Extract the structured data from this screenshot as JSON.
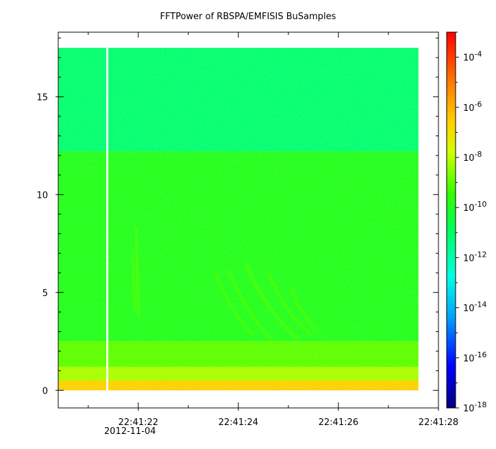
{
  "chart_data": {
    "type": "heatmap",
    "title": "FFTPower of RBSPA/EMFISIS  BuSamples",
    "xlabel": "",
    "ylabel": "",
    "x_ticks": [
      "22:41:22",
      "22:41:24",
      "22:41:26",
      "22:41:28"
    ],
    "x_tick_values": [
      22,
      24,
      26,
      28
    ],
    "x_date_label": "2012-11-04",
    "x_range_seconds": [
      20.4,
      28.0
    ],
    "data_time_range_seconds": [
      20.4,
      27.6
    ],
    "data_gap_seconds": 21.38,
    "y_ticks": [
      "0",
      "5",
      "10",
      "15"
    ],
    "y_tick_values": [
      0,
      5,
      10,
      15
    ],
    "ylim": [
      -0.9,
      18.3
    ],
    "data_freq_range": [
      0,
      17.5
    ],
    "colorbar": {
      "scale": "log",
      "range": [
        1e-18,
        0.001
      ],
      "ticks": [
        {
          "base": "10",
          "exp": "-4",
          "value": -4
        },
        {
          "base": "10",
          "exp": "-6",
          "value": -6
        },
        {
          "base": "10",
          "exp": "-8",
          "value": -8
        },
        {
          "base": "10",
          "exp": "-10",
          "value": -10
        },
        {
          "base": "10",
          "exp": "-12",
          "value": -12
        },
        {
          "base": "10",
          "exp": "-14",
          "value": -14
        },
        {
          "base": "10",
          "exp": "-16",
          "value": -16
        },
        {
          "base": "10",
          "exp": "-18",
          "value": -18
        }
      ]
    },
    "bands": [
      {
        "freq_min": 12.2,
        "freq_max": 17.5,
        "log10_power": -11.2
      },
      {
        "freq_min": 2.5,
        "freq_max": 12.2,
        "log10_power": -9.9
      },
      {
        "freq_min": 1.2,
        "freq_max": 2.5,
        "log10_power": -9.0
      },
      {
        "freq_min": 0.5,
        "freq_max": 1.2,
        "log10_power": -8.2
      },
      {
        "freq_min": 0.0,
        "freq_max": 0.5,
        "log10_power": -6.6
      }
    ],
    "chorus_features": [
      {
        "t_start": 21.95,
        "t_end": 22.02,
        "f_start": 8.3,
        "f_end": 3.7,
        "log10_power": -8.8
      },
      {
        "t_start": 21.88,
        "t_end": 21.95,
        "f_start": 7.0,
        "f_end": 4.0,
        "log10_power": -9.0
      },
      {
        "t_start": 23.55,
        "t_end": 24.3,
        "f_start": 6.0,
        "f_end": 2.8,
        "log10_power": -9.0
      },
      {
        "t_start": 23.8,
        "t_end": 24.75,
        "f_start": 6.2,
        "f_end": 2.4,
        "log10_power": -9.0
      },
      {
        "t_start": 24.15,
        "t_end": 25.2,
        "f_start": 6.5,
        "f_end": 2.6,
        "log10_power": -8.9
      },
      {
        "t_start": 24.6,
        "t_end": 25.45,
        "f_start": 6.0,
        "f_end": 2.8,
        "log10_power": -9.0
      },
      {
        "t_start": 25.05,
        "t_end": 25.6,
        "f_start": 5.2,
        "f_end": 3.0,
        "log10_power": -9.1
      }
    ]
  }
}
